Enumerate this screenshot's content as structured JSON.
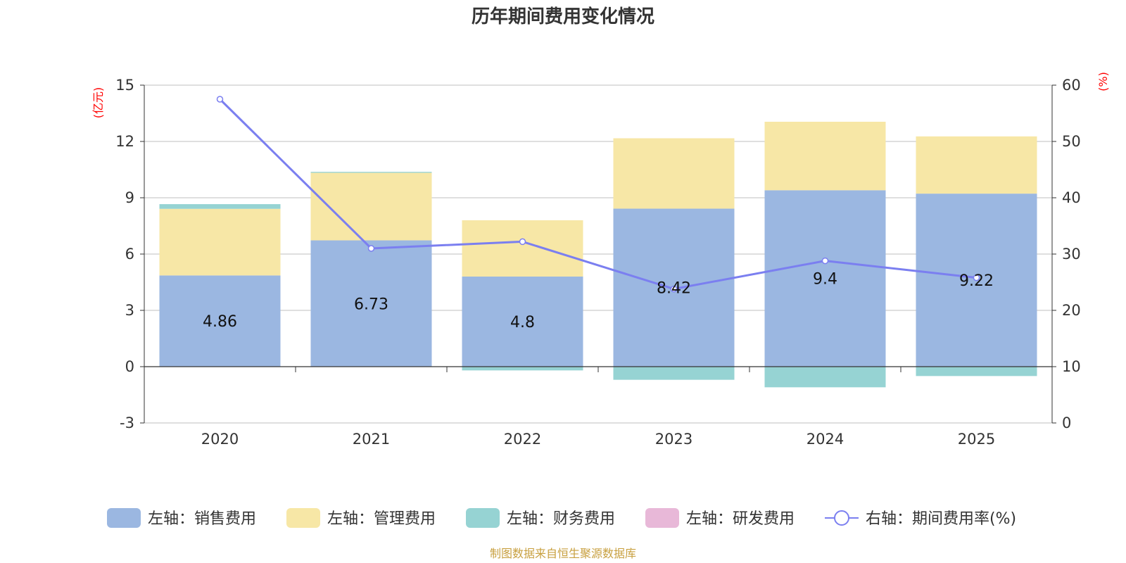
{
  "chart_data": {
    "type": "bar",
    "title": "历年期间费用变化情况",
    "categories": [
      "2020",
      "2021",
      "2022",
      "2023",
      "2024",
      "2025"
    ],
    "left_axis": {
      "unit": "(亿元)",
      "ylim": [
        -3,
        15
      ],
      "ticks": [
        15,
        12,
        9,
        6,
        3,
        0,
        -3
      ]
    },
    "right_axis": {
      "unit": "(%)",
      "ylim": [
        0,
        60
      ],
      "ticks": [
        60,
        50,
        40,
        30,
        20,
        10,
        0
      ]
    },
    "series": [
      {
        "name": "左轴：销售费用",
        "axis": "left",
        "color": "#9bb7e1",
        "values": [
          4.86,
          6.73,
          4.8,
          8.42,
          9.4,
          9.22
        ],
        "labels": [
          "4.86",
          "6.73",
          "4.8",
          "8.42",
          "9.4",
          "9.22"
        ]
      },
      {
        "name": "左轴：管理费用",
        "axis": "left",
        "color": "#f7e7a6",
        "values": [
          3.55,
          3.6,
          3.0,
          3.75,
          3.65,
          3.05
        ]
      },
      {
        "name": "左轴：财务费用",
        "axis": "left",
        "color": "#96d3d3",
        "values": [
          0.25,
          0.05,
          -0.2,
          -0.7,
          -1.1,
          -0.5
        ]
      },
      {
        "name": "左轴：研发费用",
        "axis": "left",
        "color": "#e8b8d8",
        "values": [
          0,
          0,
          0,
          0,
          0,
          0
        ]
      },
      {
        "name": "右轴：期间费用率(%)",
        "axis": "right",
        "type": "line",
        "color": "#7b7ff0",
        "values": [
          57.5,
          31,
          32.2,
          23.8,
          28.8,
          25.8
        ]
      }
    ],
    "legend_position": "bottom"
  },
  "source": "制图数据来自恒生聚源数据库"
}
